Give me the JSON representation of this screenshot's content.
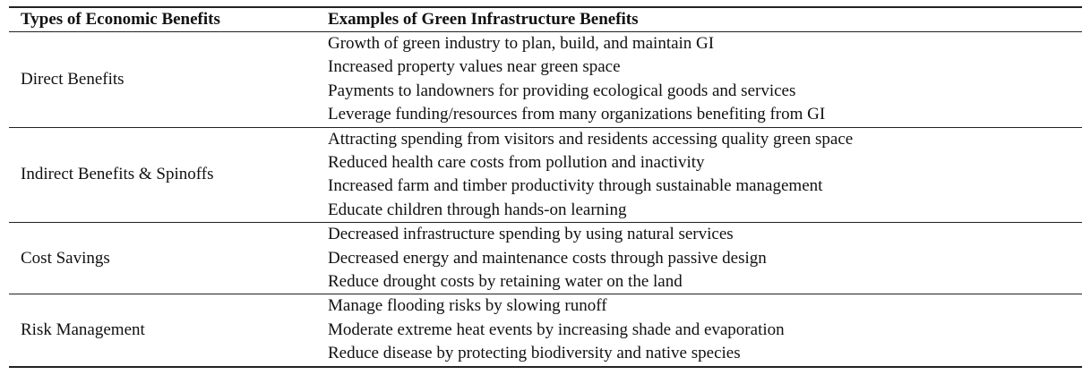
{
  "table": {
    "header": [
      "Types of Economic Benefits",
      "Examples of Green Infrastructure Benefits"
    ],
    "rows": [
      {
        "type": "Direct Benefits",
        "examples": [
          "Growth of green industry to plan, build, and maintain GI",
          "Increased property values near green space",
          "Payments to landowners for providing ecological goods and services",
          "Leverage funding/resources from many organizations benefiting from GI"
        ]
      },
      {
        "type": "Indirect Benefits & Spinoffs",
        "examples": [
          "Attracting spending from visitors and residents accessing quality green space",
          "Reduced health care costs from pollution and inactivity",
          "Increased farm and timber productivity through sustainable management",
          "Educate children through hands-on learning"
        ]
      },
      {
        "type": "Cost Savings",
        "examples": [
          "Decreased infrastructure spending by using natural services",
          "Decreased energy and maintenance costs through passive design",
          "Reduce drought costs by retaining water on the land"
        ]
      },
      {
        "type": "Risk Management",
        "examples": [
          "Manage flooding risks by slowing runoff",
          "Moderate extreme heat events by increasing shade and evaporation",
          "Reduce disease by protecting biodiversity and native species"
        ]
      }
    ]
  }
}
